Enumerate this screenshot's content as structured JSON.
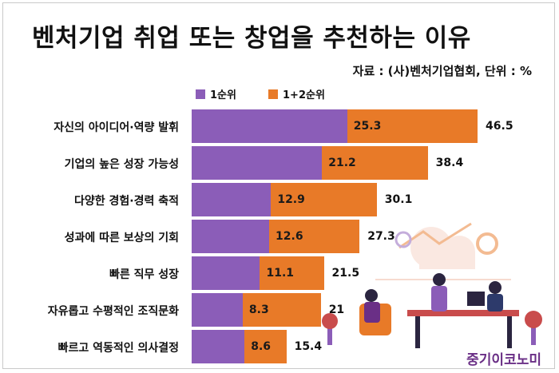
{
  "title": "벤처기업 취업 또는 창업을 추천하는 이유",
  "source": "자료 : (사)벤처기업협회, 단위 : %",
  "brand": "중기이코노미",
  "colors": {
    "first": "#8b5db8",
    "total": "#e87a28"
  },
  "chart_data": {
    "type": "bar",
    "orientation": "horizontal",
    "stacked": "overlay",
    "title": "벤처기업 취업 또는 창업을 추천하는 이유",
    "unit": "%",
    "xlim": [
      0,
      50
    ],
    "categories": [
      "자신의 아이디어·역량 발휘",
      "기업의 높은 성장 가능성",
      "다양한 경험·경력 축적",
      "성과에 따른 보상의 기회",
      "빠른 직무 성장",
      "자유롭고 수평적인 조직문화",
      "빠르고 역동적인 의사결정"
    ],
    "series": [
      {
        "name": "1순위",
        "values": [
          25.3,
          21.2,
          12.9,
          12.6,
          11.1,
          8.3,
          8.6
        ]
      },
      {
        "name": "1+2순위",
        "values": [
          46.5,
          38.4,
          30.1,
          27.3,
          21.5,
          21,
          15.4
        ]
      }
    ],
    "legend": "top"
  }
}
